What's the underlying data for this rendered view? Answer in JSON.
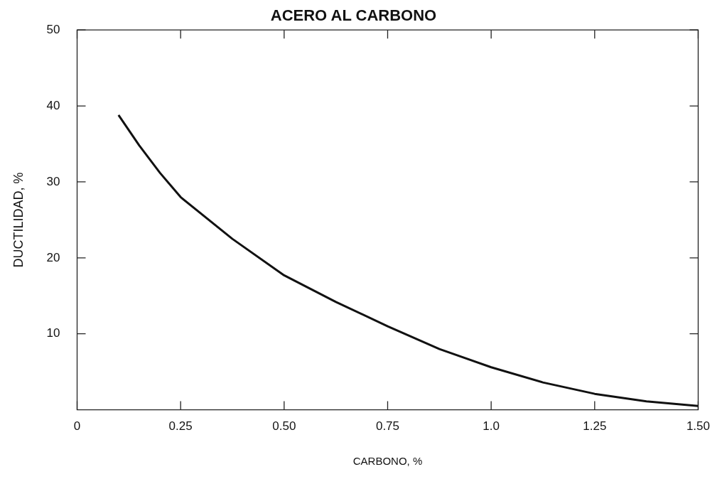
{
  "chart_data": {
    "type": "line",
    "title": "ACERO AL CARBONO",
    "xlabel": "CARBONO, %",
    "ylabel": "DUCTILIDAD, %",
    "series": [
      {
        "color": "#111111",
        "x": [
          0.1,
          0.15,
          0.2,
          0.25,
          0.375,
          0.5,
          0.625,
          0.75,
          0.875,
          1.0,
          1.125,
          1.25,
          1.375,
          1.5
        ],
        "values": [
          38.8,
          34.8,
          31.2,
          28,
          22.5,
          17.7,
          14.2,
          11,
          8,
          5.6,
          3.6,
          2.1,
          1.1,
          0.5
        ]
      }
    ],
    "xlim": [
      0,
      1.5
    ],
    "xticks": [
      0,
      0.25,
      {
        "value": 0.5,
        "label": "0.50"
      },
      0.75,
      {
        "value": 1,
        "label": "1.0"
      },
      1.25,
      {
        "value": 1.5,
        "label": "1.50"
      }
    ],
    "ylim": [
      0,
      50
    ],
    "yticks": [
      10,
      20,
      30,
      40,
      50
    ],
    "grid": false,
    "legend": false,
    "marker": "none",
    "line_style": "solid"
  }
}
